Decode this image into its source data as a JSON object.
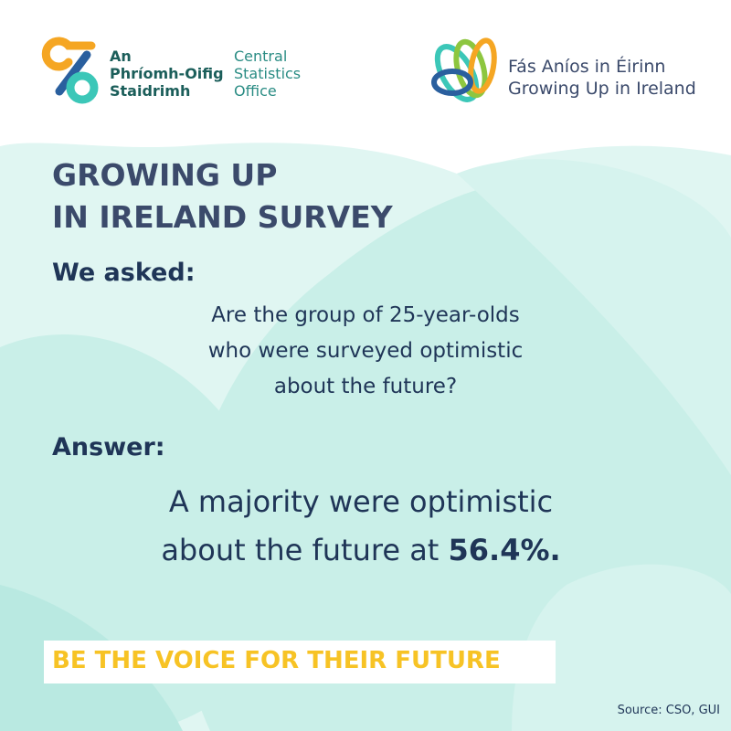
{
  "cso_logo": {
    "irish_lines": [
      "An",
      "Phríomh-Oifig",
      "Staidrimh"
    ],
    "english_lines": [
      "Central",
      "Statistics",
      "Office"
    ]
  },
  "gui_logo": {
    "lines": [
      "Fás Aníos in Éirinn",
      "Growing Up in Ireland"
    ]
  },
  "title_lines": [
    "GROWING UP",
    "IN IRELAND SURVEY"
  ],
  "question": {
    "label": "We asked:",
    "lines": [
      "Are the group of 25-year-olds",
      "who were surveyed optimistic",
      "about the future?"
    ]
  },
  "answer": {
    "label": "Answer:",
    "line1": "A majority were optimistic",
    "line2": "about the future at",
    "highlight": "56.4%."
  },
  "tagline": "BE THE VOICE FOR THEIR FUTURE",
  "source": "Source: CSO, GUI"
}
